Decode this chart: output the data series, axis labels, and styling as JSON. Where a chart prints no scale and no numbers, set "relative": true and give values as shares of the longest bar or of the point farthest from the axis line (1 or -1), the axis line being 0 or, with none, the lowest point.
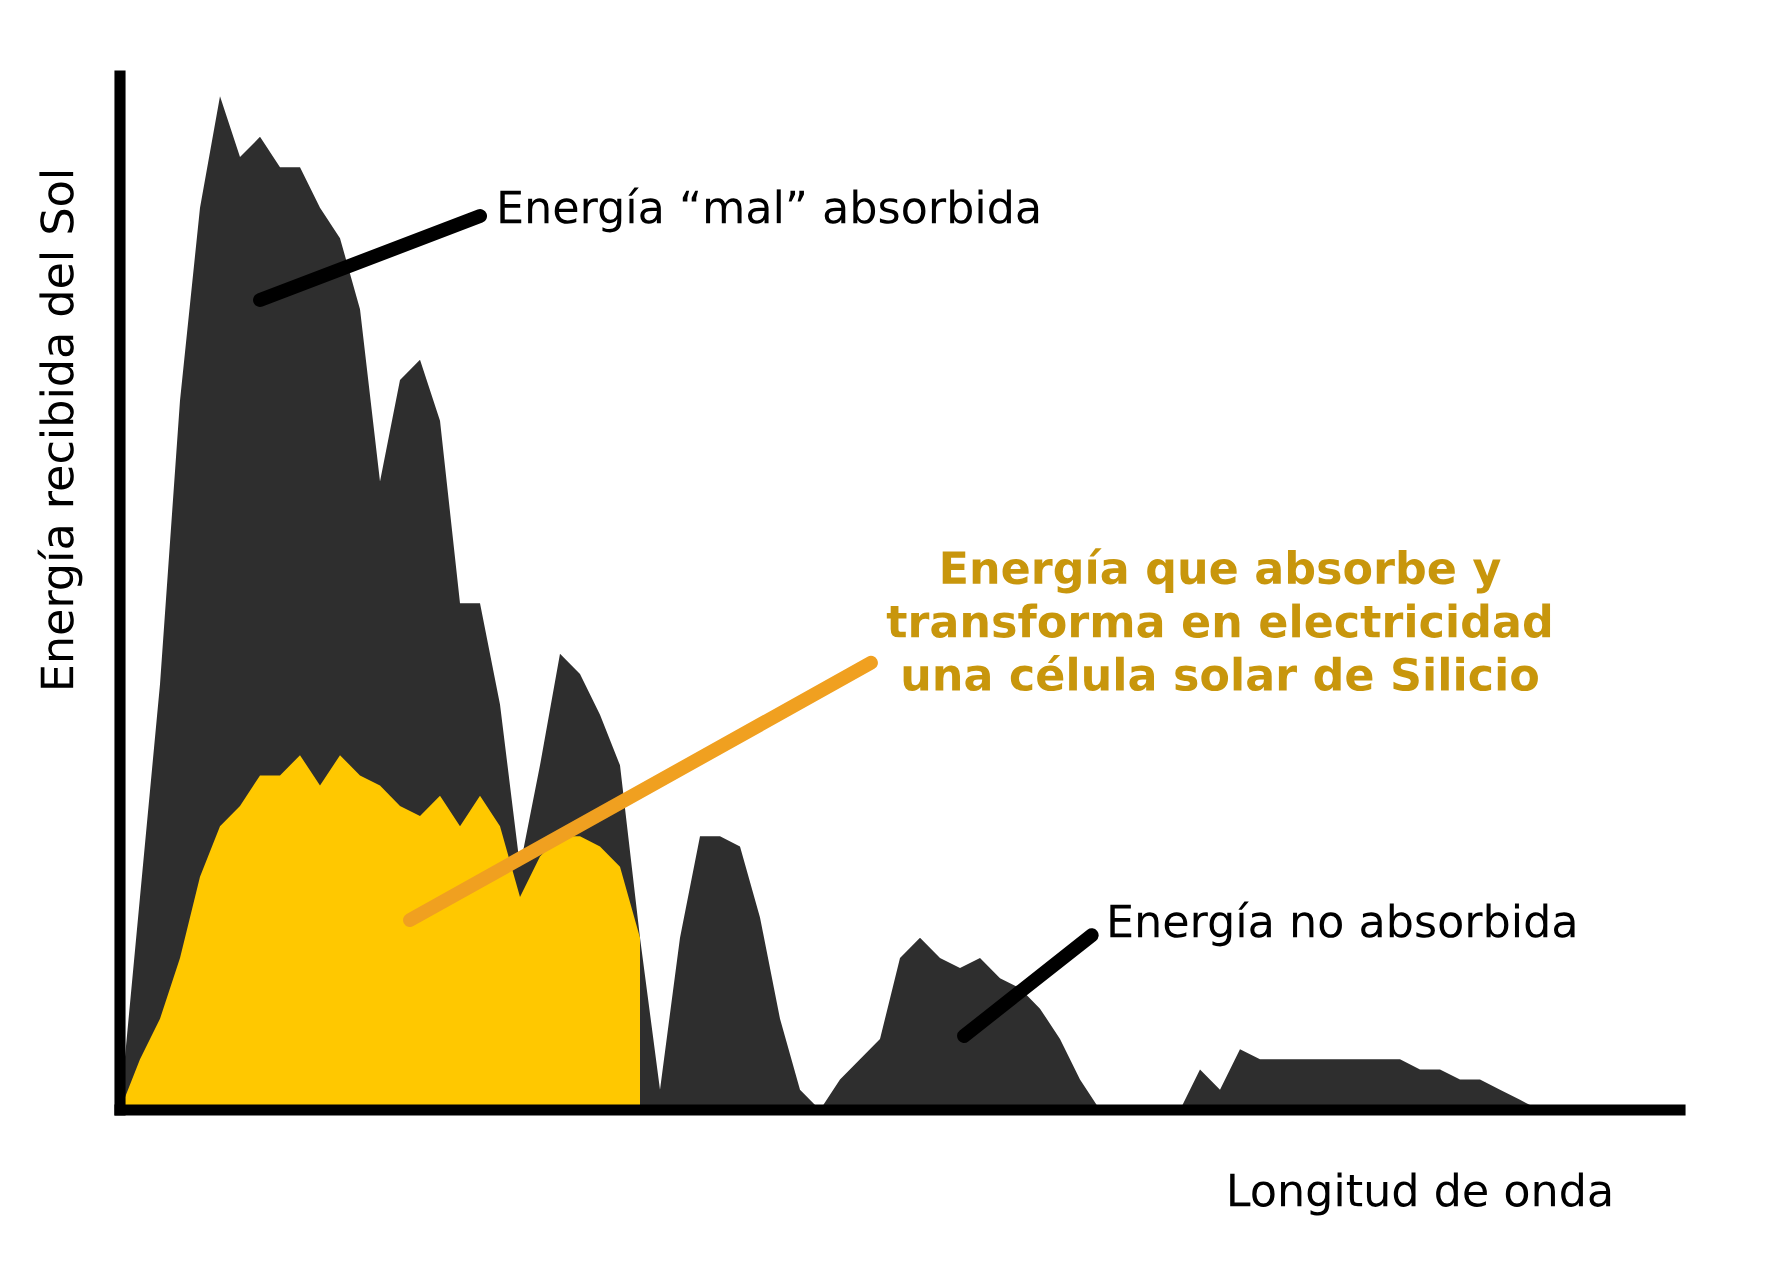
{
  "chart_data": {
    "type": "area",
    "relative": true,
    "xlabel": "Longitud de onda",
    "ylabel": "Energía recibida del Sol",
    "categories": [
      null,
      null,
      null,
      null,
      null,
      null,
      null,
      null,
      null,
      null,
      null,
      null,
      null,
      null,
      null,
      null,
      null,
      null,
      null,
      null,
      null,
      null,
      null,
      null,
      null,
      null,
      null,
      null,
      null,
      null,
      null,
      null,
      null,
      null,
      null,
      null,
      null,
      null,
      null,
      null,
      null,
      null,
      null,
      null,
      null,
      null,
      null,
      null,
      null,
      null,
      null,
      null,
      null,
      null,
      null,
      null,
      null,
      null,
      null,
      null,
      null,
      null,
      null,
      null,
      null,
      null,
      null,
      null,
      null,
      null,
      null,
      null,
      null,
      null,
      null,
      null,
      null,
      null,
      null
    ],
    "series": [
      {
        "color": "#2e2e2e",
        "values": [
          0,
          0.21,
          0.42,
          0.7,
          0.89,
          1,
          0.94,
          0.96,
          0.93,
          0.93,
          0.89,
          0.86,
          0.79,
          0.62,
          0.72,
          0.74,
          0.68,
          0.5,
          0.5,
          0.4,
          0.24,
          0.34,
          0.45,
          0.43,
          0.39,
          0.34,
          0.17,
          0.02,
          0.17,
          0.27,
          0.27,
          0.26,
          0.19,
          0.09,
          0.02,
          0,
          0.03,
          0.05,
          0.07,
          0.15,
          0.17,
          0.15,
          0.14,
          0.15,
          0.13,
          0.12,
          0.1,
          0.07,
          0.03,
          0,
          0,
          0,
          0,
          0,
          0.04,
          0.02,
          0.06,
          0.05,
          0.05,
          0.05,
          0.05,
          0.05,
          0.05,
          0.05,
          0.05,
          0.04,
          0.04,
          0.03,
          0.03,
          0.02,
          0.01,
          0,
          0,
          0,
          0,
          0,
          0,
          0,
          0
        ]
      },
      {
        "color": "#ffc800",
        "values": [
          0,
          0.05,
          0.09,
          0.15,
          0.23,
          0.28,
          0.3,
          0.33,
          0.33,
          0.35,
          0.32,
          0.35,
          0.33,
          0.32,
          0.3,
          0.29,
          0.31,
          0.28,
          0.31,
          0.28,
          0.21,
          0.25,
          0.27,
          0.27,
          0.26,
          0.24,
          0.17,
          null,
          null,
          null,
          null,
          null,
          null,
          null,
          null,
          null,
          null,
          null,
          null,
          null,
          null,
          null,
          null,
          null,
          null,
          null,
          null,
          null,
          null,
          null,
          null,
          null,
          null,
          null,
          null,
          null,
          null,
          null,
          null,
          null,
          null,
          null,
          null,
          null,
          null,
          null,
          null,
          null,
          null,
          null,
          null,
          null,
          null,
          null,
          null,
          null,
          null,
          null,
          null
        ]
      }
    ],
    "annotations": [
      "Energía “mal” absorbida",
      "Energía que absorbe y\ntransforma en electricidad\nuna célula solar de Silicio",
      "Energía no absorbida"
    ]
  }
}
